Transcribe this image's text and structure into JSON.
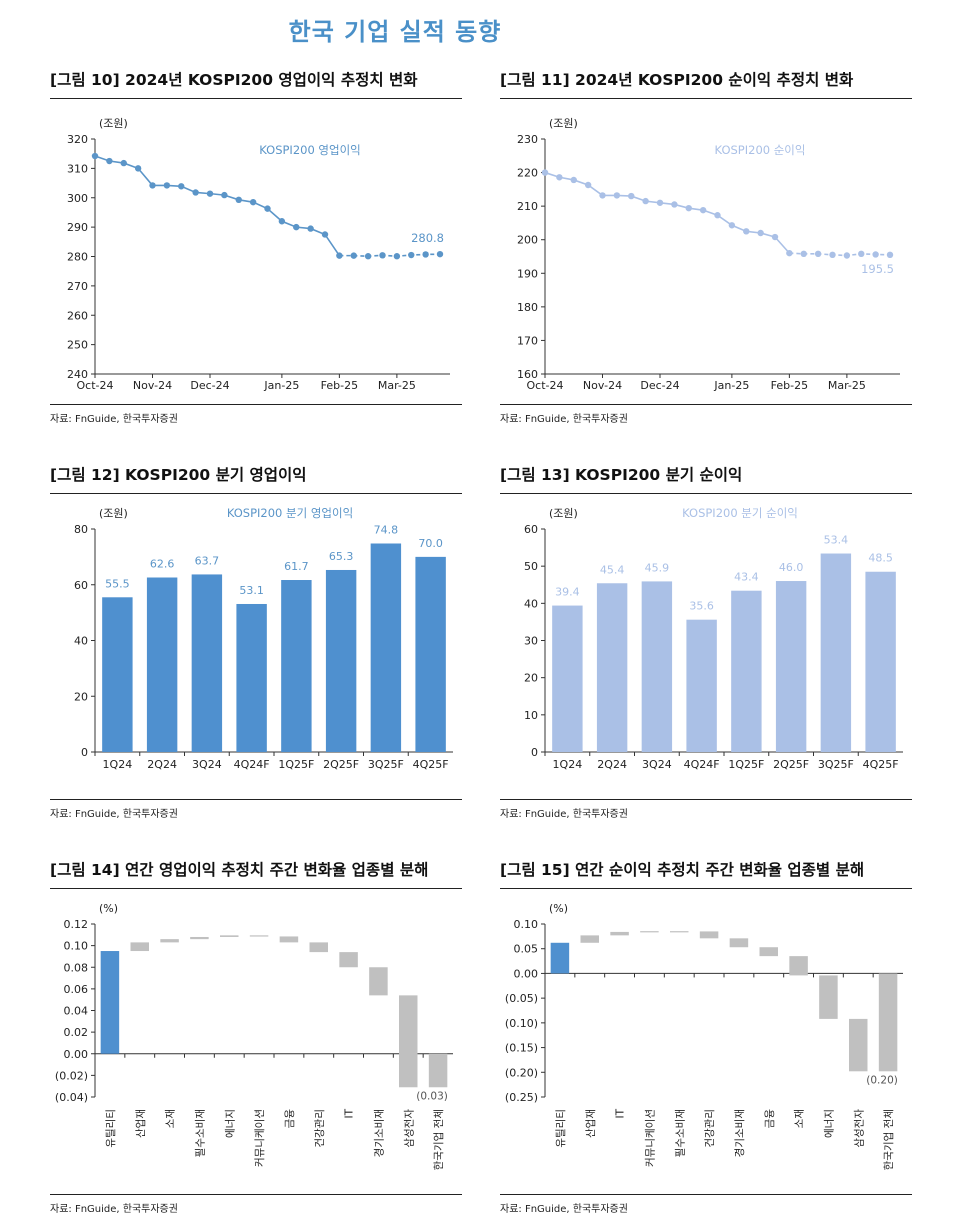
{
  "page": {
    "title": "한국 기업 실적 동향"
  },
  "source_text": "자료: FnGuide, 한국투자증권",
  "charts": [
    {
      "id": "fig10",
      "title": "[그림 10] 2024년 KOSPI200 영업이익 추정치 변화",
      "chart_data": {
        "type": "line",
        "unit": "(조원)",
        "series_label": "KOSPI200 영업이익",
        "end_label": "280.8",
        "color": "#5b95c8",
        "ylim": [
          240,
          320
        ],
        "yticks": [
          240,
          250,
          260,
          270,
          280,
          290,
          300,
          310,
          320
        ],
        "x_ticks": [
          "Oct-24",
          "Nov-24",
          "Dec-24",
          "Jan-25",
          "Feb-25",
          "Mar-25"
        ],
        "values": [
          314.2,
          312.5,
          311.8,
          310.0,
          304.2,
          304.2,
          303.9,
          301.8,
          301.4,
          300.9,
          299.3,
          298.5,
          296.3,
          292.0,
          290.0,
          289.5,
          287.5,
          280.3,
          280.3,
          280.1,
          280.4,
          280.1,
          280.5,
          280.7,
          280.8
        ]
      }
    },
    {
      "id": "fig11",
      "title": "[그림 11] 2024년 KOSPI200 순이익 추정치 변화",
      "chart_data": {
        "type": "line",
        "unit": "(조원)",
        "series_label": "KOSPI200 순이익",
        "end_label": "195.5",
        "color": "#aac0e6",
        "ylim": [
          160,
          230
        ],
        "yticks": [
          160,
          170,
          180,
          190,
          200,
          210,
          220,
          230
        ],
        "x_ticks": [
          "Oct-24",
          "Nov-24",
          "Dec-24",
          "Jan-25",
          "Feb-25",
          "Mar-25"
        ],
        "values": [
          220.0,
          218.6,
          217.8,
          216.3,
          213.2,
          213.2,
          213.0,
          211.5,
          211.0,
          210.5,
          209.4,
          208.8,
          207.3,
          204.3,
          202.5,
          202.0,
          200.8,
          196.0,
          195.8,
          195.8,
          195.5,
          195.3,
          195.8,
          195.6,
          195.5
        ]
      }
    },
    {
      "id": "fig12",
      "title": "[그림 12] KOSPI200 분기 영업이익",
      "chart_data": {
        "type": "bar",
        "unit": "(조원)",
        "series_label": "KOSPI200 분기 영업이익",
        "color": "#4f90cf",
        "label_color": "#5b95c8",
        "ylim": [
          0,
          80
        ],
        "yticks": [
          0,
          20,
          40,
          60,
          80
        ],
        "categories": [
          "1Q24",
          "2Q24",
          "3Q24",
          "4Q24F",
          "1Q25F",
          "2Q25F",
          "3Q25F",
          "4Q25F"
        ],
        "values": [
          55.5,
          62.6,
          63.7,
          53.1,
          61.7,
          65.3,
          74.8,
          70.0
        ],
        "labels": [
          "55.5",
          "62.6",
          "63.7",
          "53.1",
          "61.7",
          "65.3",
          "74.8",
          "70.0"
        ]
      }
    },
    {
      "id": "fig13",
      "title": "[그림 13] KOSPI200 분기 순이익",
      "chart_data": {
        "type": "bar",
        "unit": "(조원)",
        "series_label": "KOSPI200 분기 순이익",
        "color": "#aac0e6",
        "label_color": "#aac0e6",
        "ylim": [
          0,
          60
        ],
        "yticks": [
          0,
          10,
          20,
          30,
          40,
          50,
          60
        ],
        "categories": [
          "1Q24",
          "2Q24",
          "3Q24",
          "4Q24F",
          "1Q25F",
          "2Q25F",
          "3Q25F",
          "4Q25F"
        ],
        "values": [
          39.4,
          45.4,
          45.9,
          35.6,
          43.4,
          46.0,
          53.4,
          48.5
        ],
        "labels": [
          "39.4",
          "45.4",
          "45.9",
          "35.6",
          "43.4",
          "46.0",
          "53.4",
          "48.5"
        ]
      }
    },
    {
      "id": "fig14",
      "title": "[그림 14] 연간 영업이익 추정치 주간 변화율 업종별 분해",
      "chart_data": {
        "type": "waterfall",
        "unit": "(%)",
        "ylim": [
          -0.04,
          0.12
        ],
        "yticks": [
          -0.04,
          -0.02,
          0.0,
          0.02,
          0.04,
          0.06,
          0.08,
          0.1,
          0.12
        ],
        "ytick_labels": [
          "(0.04)",
          "(0.02)",
          "0.00",
          "0.02",
          "0.04",
          "0.06",
          "0.08",
          "0.10",
          "0.12"
        ],
        "first_color": "#4f90cf",
        "other_color": "#c0c0c0",
        "categories": [
          "유틸리티",
          "산업재",
          "소재",
          "필수소비재",
          "에너지",
          "커뮤니케이션",
          "금융",
          "건강관리",
          "IT",
          "경기소비재",
          "삼성전자",
          "한국기업 전체"
        ],
        "segments": [
          [
            0.0,
            0.095
          ],
          [
            0.095,
            0.103
          ],
          [
            0.103,
            0.106
          ],
          [
            0.106,
            0.108
          ],
          [
            0.108,
            0.1095
          ],
          [
            0.1095,
            0.1085
          ],
          [
            0.1085,
            0.103
          ],
          [
            0.103,
            0.094
          ],
          [
            0.094,
            0.08
          ],
          [
            0.08,
            0.054
          ],
          [
            0.054,
            -0.031
          ],
          [
            0.0,
            -0.031
          ]
        ],
        "total_label": "(0.03)"
      }
    },
    {
      "id": "fig15",
      "title": "[그림 15] 연간 순이익 추정치 주간 변화율 업종별 분해",
      "chart_data": {
        "type": "waterfall",
        "unit": "(%)",
        "ylim": [
          -0.25,
          0.1
        ],
        "yticks": [
          -0.25,
          -0.2,
          -0.15,
          -0.1,
          -0.05,
          0.0,
          0.05,
          0.1
        ],
        "ytick_labels": [
          "(0.25)",
          "(0.20)",
          "(0.15)",
          "(0.10)",
          "(0.05)",
          "0.00",
          "0.05",
          "0.10"
        ],
        "first_color": "#4f90cf",
        "other_color": "#c0c0c0",
        "categories": [
          "유틸리티",
          "산업재",
          "IT",
          "커뮤니케이션",
          "필수소비재",
          "건강관리",
          "경기소비재",
          "금융",
          "소재",
          "에너지",
          "삼성전자",
          "한국기업 전체"
        ],
        "segments": [
          [
            0.0,
            0.062
          ],
          [
            0.062,
            0.077
          ],
          [
            0.077,
            0.084
          ],
          [
            0.084,
            0.0855
          ],
          [
            0.0855,
            0.085
          ],
          [
            0.085,
            0.071
          ],
          [
            0.071,
            0.053
          ],
          [
            0.053,
            0.035
          ],
          [
            0.035,
            -0.004
          ],
          [
            -0.004,
            -0.092
          ],
          [
            -0.092,
            -0.198
          ],
          [
            0.0,
            -0.198
          ]
        ],
        "total_label": "(0.20)"
      }
    }
  ]
}
